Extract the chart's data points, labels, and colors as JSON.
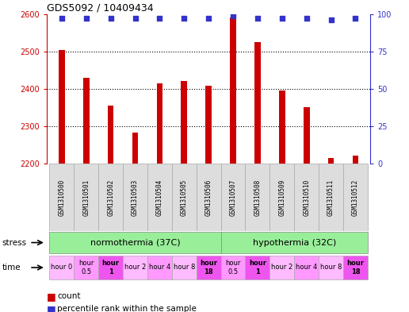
{
  "title": "GDS5092 / 10409434",
  "samples": [
    "GSM1310500",
    "GSM1310501",
    "GSM1310502",
    "GSM1310503",
    "GSM1310504",
    "GSM1310505",
    "GSM1310506",
    "GSM1310507",
    "GSM1310508",
    "GSM1310509",
    "GSM1310510",
    "GSM1310511",
    "GSM1310512"
  ],
  "counts": [
    2503,
    2430,
    2355,
    2283,
    2415,
    2422,
    2408,
    2590,
    2525,
    2396,
    2352,
    2215,
    2222
  ],
  "percentile_ranks": [
    97,
    97,
    97,
    97,
    97,
    97,
    97,
    99,
    97,
    97,
    97,
    96,
    97
  ],
  "ylim_left": [
    2200,
    2600
  ],
  "ylim_right": [
    0,
    100
  ],
  "yticks_left": [
    2200,
    2300,
    2400,
    2500,
    2600
  ],
  "yticks_right": [
    0,
    25,
    50,
    75,
    100
  ],
  "bar_color": "#cc0000",
  "dot_color": "#3333cc",
  "bar_width": 0.25,
  "stress_labels": [
    "normothermia (37C)",
    "hypothermia (32C)"
  ],
  "stress_color": "#99ee99",
  "time_labels": [
    "hour 0",
    "hour\n0.5",
    "hour\n1",
    "hour 2",
    "hour 4",
    "hour 8",
    "hour\n18",
    "hour\n0.5",
    "hour\n1",
    "hour 2",
    "hour 4",
    "hour 8",
    "hour\n18"
  ],
  "time_bold": [
    false,
    false,
    true,
    false,
    false,
    false,
    true,
    false,
    true,
    false,
    false,
    false,
    true
  ],
  "time_colors": [
    "#ffbbff",
    "#ff99ff",
    "#ee55ee",
    "#ffbbff",
    "#ff99ff",
    "#ffbbff",
    "#ee55ee",
    "#ff99ff",
    "#ee55ee",
    "#ffbbff",
    "#ff99ff",
    "#ffbbff",
    "#ee55ee"
  ],
  "sample_bg": "#dddddd",
  "left_tick_color": "#cc0000",
  "right_tick_color": "#3333cc"
}
